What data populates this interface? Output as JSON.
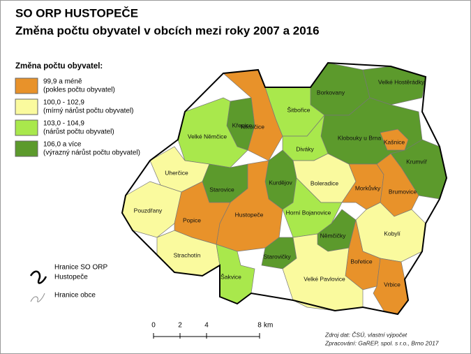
{
  "title": [
    "SO ORP HUSTOPEČE",
    "Změna počtu obyvatel v obcích mezi roky 2007 a 2016"
  ],
  "legend": {
    "title": "Změna počtu obyvatel:",
    "classes": [
      {
        "label": "99,9 a méně",
        "note": "(pokles počtu obyvatel)",
        "color": "#e8922a"
      },
      {
        "label": "100,0 - 102,9",
        "note": "(mírný nárůst počtu obyvatel)",
        "color": "#fafa9e"
      },
      {
        "label": "103,0 - 104,9",
        "note": "(nárůst počtu obyvatel)",
        "color": "#a9e84c"
      },
      {
        "label": "106,0 a více",
        "note": "(výrazný nárůst počtu obyvatel)",
        "color": "#5c9a2c"
      }
    ],
    "boundaries": [
      {
        "label": [
          "Hranice SO ORP",
          "Hustopeče"
        ]
      },
      {
        "label": [
          "Hranice obce"
        ]
      }
    ]
  },
  "municipalities": [
    {
      "name": "Nikolčice",
      "class": 0
    },
    {
      "name": "Borkovany",
      "class": 3
    },
    {
      "name": "Velké Hostěrádky",
      "class": 3
    },
    {
      "name": "Šitbořice",
      "class": 2
    },
    {
      "name": "Křepice",
      "class": 3
    },
    {
      "name": "Velké Němčice",
      "class": 2
    },
    {
      "name": "Klobouky u Brna",
      "class": 3
    },
    {
      "name": "Kašnice",
      "class": 0
    },
    {
      "name": "Diváky",
      "class": 2
    },
    {
      "name": "Krumvíř",
      "class": 3
    },
    {
      "name": "Uherčice",
      "class": 1
    },
    {
      "name": "Boleradice",
      "class": 1
    },
    {
      "name": "Starovice",
      "class": 3
    },
    {
      "name": "Kurdějov",
      "class": 3
    },
    {
      "name": "Morkůvky",
      "class": 0
    },
    {
      "name": "Brumovice",
      "class": 0
    },
    {
      "name": "Pouzdřany",
      "class": 1
    },
    {
      "name": "Hustopeče",
      "class": 0
    },
    {
      "name": "Popice",
      "class": 0
    },
    {
      "name": "Horní Bojanovice",
      "class": 2
    },
    {
      "name": "Němčičky",
      "class": 3
    },
    {
      "name": "Kobylí",
      "class": 1
    },
    {
      "name": "Strachotín",
      "class": 1
    },
    {
      "name": "Starovičky",
      "class": 3
    },
    {
      "name": "Bořetice",
      "class": 0
    },
    {
      "name": "Šakvice",
      "class": 2
    },
    {
      "name": "Velké Pavlovice",
      "class": 1
    },
    {
      "name": "Vrbice",
      "class": 0
    }
  ],
  "scale": {
    "ticks": [
      0,
      2,
      4,
      8
    ],
    "unit": "km"
  },
  "source": [
    "Zdroj dat: ČSÚ, vlastní výpočet",
    "Zpracování: GaREP, spol. s r.o., Brno 2017"
  ]
}
